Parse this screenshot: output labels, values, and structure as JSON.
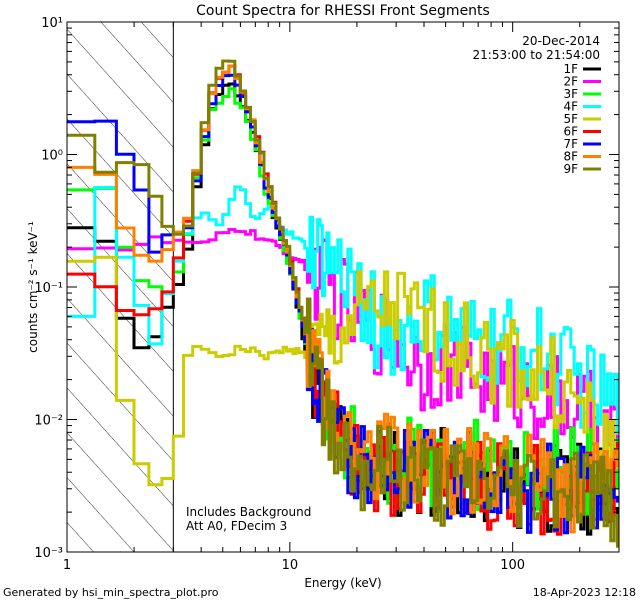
{
  "chart_data": {
    "type": "line",
    "title": "Count Spectra for RHESSI Front Segments",
    "xlabel": "Energy (keV)",
    "ylabel": "counts cm⁻² s⁻¹ keV⁻¹",
    "xscale": "log",
    "yscale": "log",
    "xlim": [
      1,
      300
    ],
    "ylim": [
      0.001,
      10
    ],
    "x_ticks": [
      {
        "value": 1,
        "label": "1"
      },
      {
        "value": 10,
        "label": "10"
      },
      {
        "value": 100,
        "label": "100"
      }
    ],
    "y_ticks": [
      {
        "value": 0.001,
        "label": "10⁻³"
      },
      {
        "value": 0.01,
        "label": "10⁻²"
      },
      {
        "value": 0.1,
        "label": "10⁻¹"
      },
      {
        "value": 1,
        "label": "10⁰"
      },
      {
        "value": 10,
        "label": "10¹"
      }
    ],
    "hatched_region_keV": [
      1,
      3
    ],
    "annotation_date": "20-Dec-2014",
    "annotation_time": "21:53:00 to 21:54:00",
    "annotation_background": "Includes Background",
    "annotation_atten": "Att A0, FDecim 3",
    "legend_position": "top-right",
    "series": [
      {
        "name": "1F",
        "color": "#000000",
        "x": [
          1.0,
          1.5,
          2.0,
          2.5,
          3.0,
          3.5,
          4.0,
          4.5,
          5.0,
          5.5,
          6.0,
          7.0,
          8.0,
          10.0,
          12.0,
          15.0,
          20.0,
          30.0,
          50.0,
          100.0,
          200.0,
          300.0
        ],
        "y": [
          0.32,
          0.2,
          0.035,
          0.045,
          0.08,
          0.2,
          0.9,
          2.2,
          3.0,
          3.4,
          2.6,
          1.3,
          0.5,
          0.14,
          0.03,
          0.008,
          0.005,
          0.004,
          0.004,
          0.003,
          0.003,
          0.003
        ]
      },
      {
        "name": "2F",
        "color": "#ff00ff",
        "x": [
          1.0,
          1.5,
          2.0,
          2.5,
          3.0,
          3.5,
          4.0,
          5.0,
          6.0,
          8.0,
          10.0,
          12.0,
          15.0,
          20.0,
          30.0,
          40.0,
          50.0,
          60.0,
          80.0,
          100.0,
          150.0,
          200.0,
          300.0
        ],
        "y": [
          0.22,
          0.2,
          0.2,
          0.22,
          0.22,
          0.22,
          0.2,
          0.25,
          0.28,
          0.22,
          0.18,
          0.14,
          0.1,
          0.06,
          0.04,
          0.025,
          0.03,
          0.022,
          0.02,
          0.018,
          0.014,
          0.012,
          0.007
        ]
      },
      {
        "name": "3F",
        "color": "#00ff00",
        "x": [
          1.0,
          1.5,
          2.0,
          2.5,
          3.0,
          3.5,
          4.0,
          4.5,
          5.0,
          5.5,
          6.0,
          7.0,
          8.0,
          10.0,
          12.0,
          15.0,
          20.0,
          30.0,
          50.0,
          100.0,
          200.0,
          300.0
        ],
        "y": [
          0.55,
          0.5,
          0.14,
          0.1,
          0.1,
          0.25,
          1.0,
          2.2,
          2.8,
          3.0,
          2.4,
          1.2,
          0.45,
          0.14,
          0.035,
          0.01,
          0.006,
          0.005,
          0.005,
          0.004,
          0.004,
          0.004
        ]
      },
      {
        "name": "4F",
        "color": "#00ffff",
        "x": [
          1.0,
          1.5,
          2.0,
          2.5,
          3.0,
          3.5,
          4.0,
          5.0,
          6.0,
          7.0,
          8.0,
          10.0,
          12.0,
          15.0,
          20.0,
          25.0,
          30.0,
          40.0,
          50.0,
          60.0,
          80.0,
          100.0,
          150.0,
          200.0,
          300.0
        ],
        "y": [
          0.02,
          0.6,
          0.1,
          0.04,
          0.12,
          0.25,
          0.35,
          0.3,
          0.6,
          0.3,
          0.4,
          0.25,
          0.2,
          0.15,
          0.1,
          0.05,
          0.04,
          0.06,
          0.05,
          0.04,
          0.035,
          0.04,
          0.03,
          0.02,
          0.012
        ]
      },
      {
        "name": "5F",
        "color": "#cccc00",
        "x": [
          1.0,
          1.5,
          2.0,
          2.5,
          3.0,
          3.5,
          4.0,
          5.0,
          6.0,
          8.0,
          10.0,
          12.0,
          15.0,
          20.0,
          30.0,
          40.0,
          50.0,
          60.0,
          80.0,
          100.0,
          150.0,
          200.0,
          300.0
        ],
        "y": [
          0.16,
          0.15,
          0.005,
          0.003,
          0.004,
          0.03,
          0.035,
          0.03,
          0.035,
          0.03,
          0.035,
          0.03,
          0.04,
          0.06,
          0.07,
          0.05,
          0.04,
          0.035,
          0.03,
          0.025,
          0.02,
          0.012,
          0.005
        ]
      },
      {
        "name": "6F",
        "color": "#ff0000",
        "x": [
          1.0,
          1.5,
          2.0,
          2.5,
          3.0,
          3.5,
          4.0,
          4.5,
          5.0,
          5.5,
          6.0,
          7.0,
          8.0,
          10.0,
          12.0,
          15.0,
          20.0,
          30.0,
          50.0,
          100.0,
          200.0,
          300.0
        ],
        "y": [
          0.12,
          0.1,
          0.06,
          0.07,
          0.12,
          0.3,
          1.2,
          3.0,
          4.3,
          4.8,
          3.5,
          1.6,
          0.6,
          0.17,
          0.04,
          0.01,
          0.005,
          0.004,
          0.004,
          0.003,
          0.003,
          0.003
        ]
      },
      {
        "name": "7F",
        "color": "#0000ff",
        "x": [
          1.0,
          1.5,
          2.0,
          2.5,
          3.0,
          3.5,
          4.0,
          4.5,
          5.0,
          5.5,
          6.0,
          7.0,
          8.0,
          10.0,
          12.0,
          15.0,
          20.0,
          30.0,
          50.0,
          100.0,
          200.0,
          300.0
        ],
        "y": [
          1.7,
          2.0,
          0.8,
          0.2,
          0.25,
          0.3,
          1.0,
          2.5,
          3.8,
          4.0,
          3.0,
          1.4,
          0.5,
          0.15,
          0.035,
          0.009,
          0.005,
          0.004,
          0.004,
          0.003,
          0.003,
          0.003
        ]
      },
      {
        "name": "8F",
        "color": "#ff8000",
        "x": [
          1.0,
          1.5,
          2.0,
          2.5,
          3.0,
          3.5,
          4.0,
          4.5,
          5.0,
          5.5,
          6.0,
          7.0,
          8.0,
          10.0,
          12.0,
          15.0,
          20.0,
          30.0,
          50.0,
          100.0,
          200.0,
          300.0
        ],
        "y": [
          0.75,
          0.7,
          0.2,
          0.15,
          0.22,
          0.35,
          1.2,
          3.0,
          4.2,
          4.6,
          3.4,
          1.5,
          0.55,
          0.16,
          0.04,
          0.012,
          0.006,
          0.005,
          0.004,
          0.004,
          0.003,
          0.003
        ]
      },
      {
        "name": "9F",
        "color": "#808000",
        "x": [
          1.0,
          1.5,
          2.0,
          2.5,
          3.0,
          3.5,
          4.0,
          4.5,
          5.0,
          5.5,
          6.0,
          7.0,
          8.0,
          10.0,
          12.0,
          15.0,
          20.0,
          30.0,
          50.0,
          100.0,
          200.0,
          300.0
        ],
        "y": [
          2.0,
          0.8,
          1.0,
          0.5,
          0.25,
          0.3,
          1.2,
          3.5,
          4.8,
          4.9,
          3.6,
          1.6,
          0.6,
          0.18,
          0.04,
          0.01,
          0.004,
          0.004,
          0.003,
          0.003,
          0.003,
          0.002
        ]
      }
    ]
  },
  "footer": {
    "generated_by": "Generated by hsi_min_spectra_plot.pro",
    "timestamp": "18-Apr-2023 12:18"
  }
}
